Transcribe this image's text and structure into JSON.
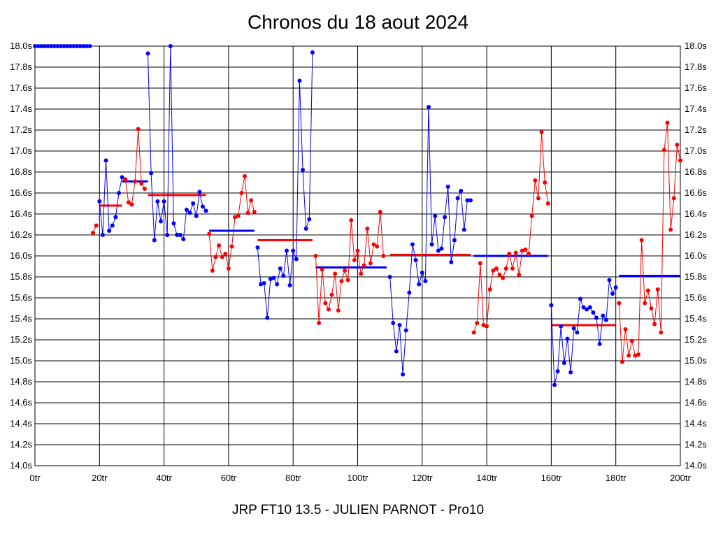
{
  "title": "Chronos du 18 aout 2024",
  "footer": "JRP FT10 13.5 - JULIEN PARNOT - Pro10",
  "colors": {
    "series_a": "#0000ff",
    "series_b": "#ff0000",
    "grid": "#000000"
  },
  "chart_data": {
    "type": "line",
    "xlim": [
      0,
      200
    ],
    "ylim": [
      14.0,
      18.0
    ],
    "x_ticks": [
      0,
      20,
      40,
      60,
      80,
      100,
      120,
      140,
      160,
      180,
      200
    ],
    "x_tick_labels": [
      "0tr",
      "20tr",
      "40tr",
      "60tr",
      "80tr",
      "100tr",
      "120tr",
      "140tr",
      "160tr",
      "180tr",
      "200tr"
    ],
    "y_ticks": [
      14.0,
      14.2,
      14.4,
      14.6,
      14.8,
      15.0,
      15.2,
      15.4,
      15.6,
      15.8,
      16.0,
      16.2,
      16.4,
      16.6,
      16.8,
      17.0,
      17.2,
      17.4,
      17.6,
      17.8,
      18.0
    ],
    "y_tick_labels": [
      "14.0s",
      "14.2s",
      "14.4s",
      "14.6s",
      "14.8s",
      "15.0s",
      "15.2s",
      "15.4s",
      "15.6s",
      "15.8s",
      "16.0s",
      "16.2s",
      "16.4s",
      "16.6s",
      "16.8s",
      "17.0s",
      "17.2s",
      "17.4s",
      "17.6s",
      "17.8s",
      "18.0s"
    ],
    "grid": true,
    "segments": [
      {
        "color": "blue",
        "x": [
          0,
          1,
          2,
          3,
          4,
          5,
          6,
          7,
          8,
          9,
          10,
          11,
          12,
          13,
          14,
          15,
          16,
          17
        ],
        "y": [
          18.0,
          18.0,
          18.0,
          18.0,
          18.0,
          18.0,
          18.0,
          18.0,
          18.0,
          18.0,
          18.0,
          18.0,
          18.0,
          18.0,
          18.0,
          18.0,
          18.0,
          18.0
        ]
      },
      {
        "color": "red",
        "x": [
          18,
          19
        ],
        "y": [
          16.22,
          16.29
        ]
      },
      {
        "color": "blue",
        "x": [
          20,
          21,
          22,
          23,
          24,
          25,
          26,
          27
        ],
        "y": [
          16.52,
          16.2,
          16.91,
          16.24,
          16.29,
          16.37,
          16.6,
          16.75
        ]
      },
      {
        "color": "red",
        "x": [
          28,
          29,
          30,
          31,
          32,
          33,
          34
        ],
        "y": [
          16.73,
          16.51,
          16.49,
          16.71,
          17.21,
          16.69,
          16.64
        ]
      },
      {
        "color": "blue",
        "x": [
          35,
          36,
          37,
          38,
          39,
          40,
          41,
          42,
          43,
          44,
          45,
          46,
          47,
          48,
          49,
          50,
          51,
          52,
          53
        ],
        "y": [
          17.93,
          16.79,
          16.15,
          16.52,
          16.33,
          16.52,
          16.2,
          18.0,
          16.31,
          16.2,
          16.2,
          16.16,
          16.44,
          16.41,
          16.5,
          16.38,
          16.61,
          16.47,
          16.43
        ]
      },
      {
        "color": "red",
        "x": [
          54,
          55,
          56,
          57,
          58,
          59,
          60,
          61,
          62,
          63,
          64,
          65,
          66,
          67,
          68
        ],
        "y": [
          16.21,
          15.86,
          15.99,
          16.1,
          15.99,
          16.02,
          15.88,
          16.09,
          16.37,
          16.38,
          16.6,
          16.76,
          16.41,
          16.53,
          16.42
        ]
      },
      {
        "color": "blue",
        "x": [
          69,
          70,
          71,
          72,
          73,
          74,
          75,
          76,
          77,
          78,
          79,
          80,
          81,
          82,
          83,
          84,
          85,
          86
        ],
        "y": [
          16.08,
          15.73,
          15.74,
          15.41,
          15.78,
          15.79,
          15.73,
          15.88,
          15.81,
          16.05,
          15.72,
          16.05,
          15.97,
          17.67,
          16.82,
          16.26,
          16.35,
          17.94
        ]
      },
      {
        "color": "red",
        "x": [
          87,
          88,
          89,
          90,
          91,
          92,
          93,
          94,
          95,
          96,
          97,
          98,
          99,
          100,
          101,
          102,
          103,
          104,
          105,
          106,
          107,
          108
        ],
        "y": [
          16.0,
          15.36,
          15.87,
          15.55,
          15.49,
          15.63,
          15.83,
          15.48,
          15.76,
          15.86,
          15.77,
          16.34,
          15.96,
          16.05,
          15.83,
          15.91,
          16.26,
          15.93,
          16.11,
          16.09,
          16.42,
          16.0
        ]
      },
      {
        "color": "blue",
        "x": [
          110,
          111,
          112,
          113,
          114,
          115,
          116,
          117,
          118,
          119,
          120,
          121,
          122,
          123,
          124,
          125,
          126,
          127,
          128,
          129,
          130,
          131,
          132,
          133,
          134,
          135
        ],
        "y": [
          15.8,
          15.36,
          15.09,
          15.34,
          14.87,
          15.29,
          15.65,
          16.11,
          15.96,
          15.73,
          15.84,
          15.76,
          17.42,
          16.11,
          16.38,
          16.05,
          16.07,
          16.37,
          16.66,
          15.94,
          16.15,
          16.55,
          16.62,
          16.25,
          16.53,
          16.53
        ]
      },
      {
        "color": "red",
        "x": [
          136,
          137,
          138,
          139,
          140,
          141,
          142,
          143,
          144,
          145,
          146,
          147,
          148,
          149,
          150,
          151,
          152,
          153,
          154,
          155,
          156,
          157,
          158,
          159
        ],
        "y": [
          15.27,
          15.36,
          15.93,
          15.34,
          15.33,
          15.68,
          15.86,
          15.88,
          15.82,
          15.79,
          15.88,
          16.02,
          15.88,
          16.03,
          15.82,
          16.05,
          16.06,
          16.02,
          16.38,
          16.72,
          16.55,
          17.18,
          16.7,
          16.5
        ]
      },
      {
        "color": "blue",
        "x": [
          160,
          161,
          162,
          163,
          164,
          165,
          166,
          167,
          168,
          169,
          170,
          171,
          172,
          173,
          174,
          175,
          176,
          177,
          178,
          179,
          180
        ],
        "y": [
          15.53,
          14.77,
          14.9,
          15.33,
          14.98,
          15.21,
          14.89,
          15.31,
          15.27,
          15.59,
          15.51,
          15.49,
          15.51,
          15.46,
          15.41,
          15.16,
          15.43,
          15.39,
          15.77,
          15.64,
          15.7
        ]
      },
      {
        "color": "red",
        "x": [
          181,
          182,
          183,
          184,
          185,
          186,
          187,
          188,
          189,
          190,
          191,
          192,
          193,
          194,
          195,
          196,
          197,
          198,
          199,
          200
        ],
        "y": [
          15.55,
          14.99,
          15.3,
          15.05,
          15.19,
          15.05,
          15.06,
          16.15,
          15.55,
          15.67,
          15.5,
          15.35,
          15.68,
          15.27,
          17.01,
          17.27,
          16.25,
          16.55,
          17.06,
          16.91
        ]
      }
    ],
    "averages": [
      {
        "color": "red",
        "x": [
          20,
          27
        ],
        "y": 16.48
      },
      {
        "color": "blue",
        "x": [
          27,
          35
        ],
        "y": 16.71
      },
      {
        "color": "red",
        "x": [
          35,
          53
        ],
        "y": 16.58
      },
      {
        "color": "blue",
        "x": [
          54,
          68
        ],
        "y": 16.24
      },
      {
        "color": "red",
        "x": [
          69,
          86
        ],
        "y": 16.15
      },
      {
        "color": "blue",
        "x": [
          87,
          109
        ],
        "y": 15.89
      },
      {
        "color": "red",
        "x": [
          110,
          135
        ],
        "y": 16.01
      },
      {
        "color": "blue",
        "x": [
          136,
          159
        ],
        "y": 16.0
      },
      {
        "color": "red",
        "x": [
          160,
          180
        ],
        "y": 15.34
      },
      {
        "color": "blue",
        "x": [
          181,
          200
        ],
        "y": 15.81
      }
    ]
  }
}
